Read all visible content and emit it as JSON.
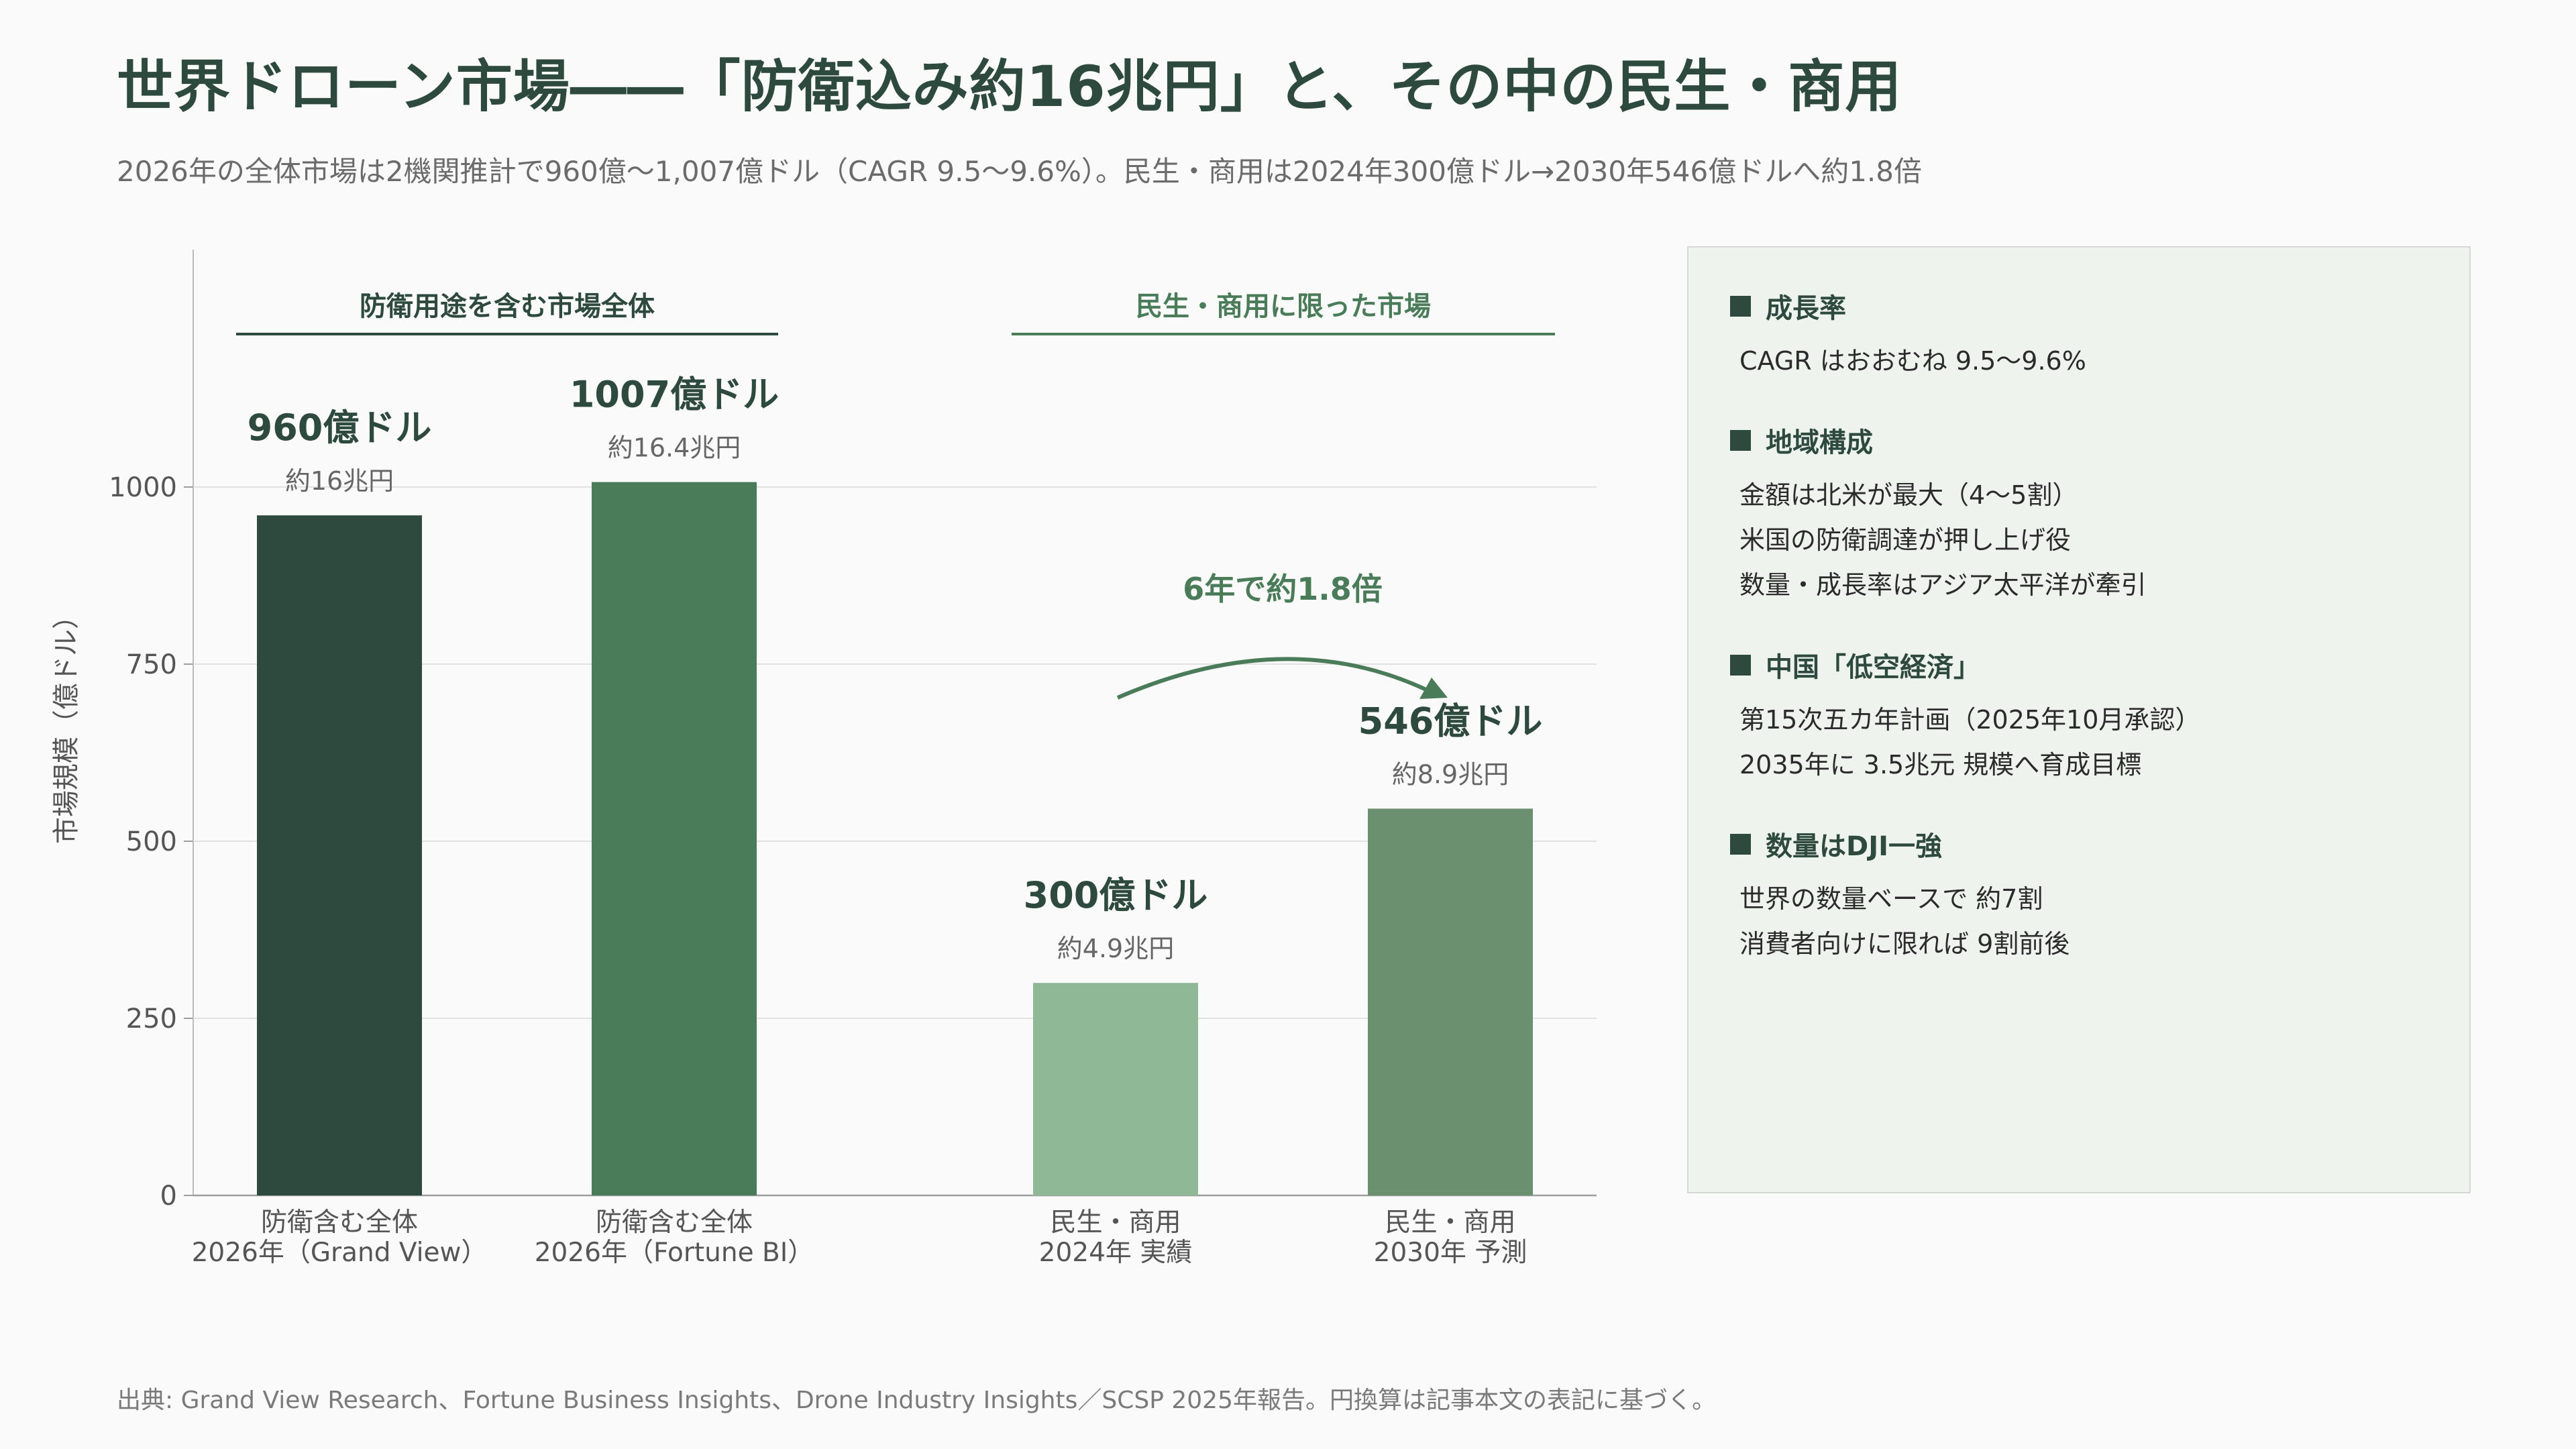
{
  "title": "世界ドローン市場――「防衛込み約16兆円」と、その中の民生・商用",
  "subtitle": "2026年の全体市場は2機関推計で960億〜1,007億ドル（CAGR 9.5〜9.6%）。民生・商用は2024年300億ドル→2030年546億ドルへ約1.8倍",
  "source": "出典: Grand View Research、Fortune Business Insights、Drone Industry Insights／SCSP 2025年報告。円換算は記事本文の表記に基づく。",
  "colors": {
    "title": "#2e4a3f",
    "accent": "#4a7c59",
    "bar1": "#2e4a3f",
    "bar2": "#4a7c59",
    "bar3": "#8fb996",
    "bar4": "#6b9070"
  },
  "chart_data": {
    "type": "bar",
    "ylabel": "市場規模（億ドル）",
    "ylim": [
      0,
      1000
    ],
    "yticks": [
      0,
      250,
      500,
      750,
      1000
    ],
    "grid": true,
    "groups": [
      {
        "label": "防衛用途を含む市場全体",
        "bar_indices": [
          0,
          1
        ]
      },
      {
        "label": "民生・商用に限った市場",
        "bar_indices": [
          2,
          3
        ]
      }
    ],
    "bars": [
      {
        "category_line1": "防衛含む全体",
        "category_line2": "2026年（Grand View）",
        "value": 960,
        "label": "960億ドル",
        "sublabel": "約16兆円",
        "color": "#2e4a3f"
      },
      {
        "category_line1": "防衛含む全体",
        "category_line2": "2026年（Fortune BI）",
        "value": 1007,
        "label": "1007億ドル",
        "sublabel": "約16.4兆円",
        "color": "#4a7c59"
      },
      {
        "category_line1": "民生・商用",
        "category_line2": "2024年 実績",
        "value": 300,
        "label": "300億ドル",
        "sublabel": "約4.9兆円",
        "color": "#8fb996"
      },
      {
        "category_line1": "民生・商用",
        "category_line2": "2030年 予測",
        "value": 546,
        "label": "546億ドル",
        "sublabel": "約8.9兆円",
        "color": "#6b9070"
      }
    ],
    "annotation": "6年で約1.8倍"
  },
  "panel": {
    "sections": [
      {
        "heading": "成長率",
        "lines": [
          "CAGR はおおむね 9.5〜9.6%"
        ]
      },
      {
        "heading": "地域構成",
        "lines": [
          "金額は北米が最大（4〜5割）",
          "米国の防衛調達が押し上げ役",
          "数量・成長率はアジア太平洋が牽引"
        ]
      },
      {
        "heading": "中国「低空経済」",
        "lines": [
          "第15次五カ年計画（2025年10月承認）",
          "2035年に 3.5兆元 規模へ育成目標"
        ]
      },
      {
        "heading": "数量はDJI一強",
        "lines": [
          "世界の数量ベースで 約7割",
          "消費者向けに限れば 9割前後"
        ]
      }
    ]
  }
}
